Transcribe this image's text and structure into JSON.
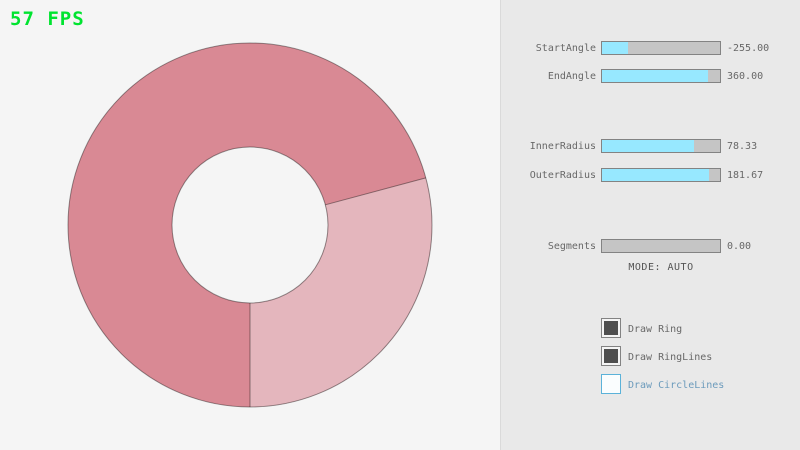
{
  "fps": {
    "label": "57 FPS"
  },
  "ring": {
    "start_angle": -255.0,
    "end_angle": 360.0,
    "inner_radius": 78.33,
    "outer_radius": 181.67,
    "segments": 0.0,
    "mode": "AUTO"
  },
  "panel": {
    "sliders": [
      {
        "id": "start-angle",
        "label": "StartAngle",
        "value": "-255.00",
        "fill_percent": 21.7
      },
      {
        "id": "end-angle",
        "label": "EndAngle",
        "value": "360.00",
        "fill_percent": 90.0
      },
      {
        "id": "inner-radius",
        "label": "InnerRadius",
        "value": "78.33",
        "fill_percent": 78.3
      },
      {
        "id": "outer-radius",
        "label": "OuterRadius",
        "value": "181.67",
        "fill_percent": 90.8
      },
      {
        "id": "segments",
        "label": "Segments",
        "value": "0.00",
        "fill_percent": 0
      }
    ],
    "mode_label": "MODE: AUTO",
    "checkboxes": [
      {
        "label": "Draw Ring",
        "state": "checked"
      },
      {
        "label": "Draw RingLines",
        "state": "checked"
      },
      {
        "label": "Draw CircleLines",
        "state": "focused"
      }
    ]
  },
  "colors": {
    "bg": "#f5f5f5",
    "panel_bg": "#e9e9e9",
    "border": "#838383",
    "track": "#c5c5c5",
    "accent": "#97e8ff",
    "text": "#686868",
    "fps_green": "#00e430",
    "ring_dark": "#d98994",
    "ring_light": "#e4b6bd",
    "ring_line": "#00000066",
    "check_fill": "#4f4f4f",
    "focused_border": "#5bb2d9",
    "focused_text": "#6c9bbc"
  }
}
